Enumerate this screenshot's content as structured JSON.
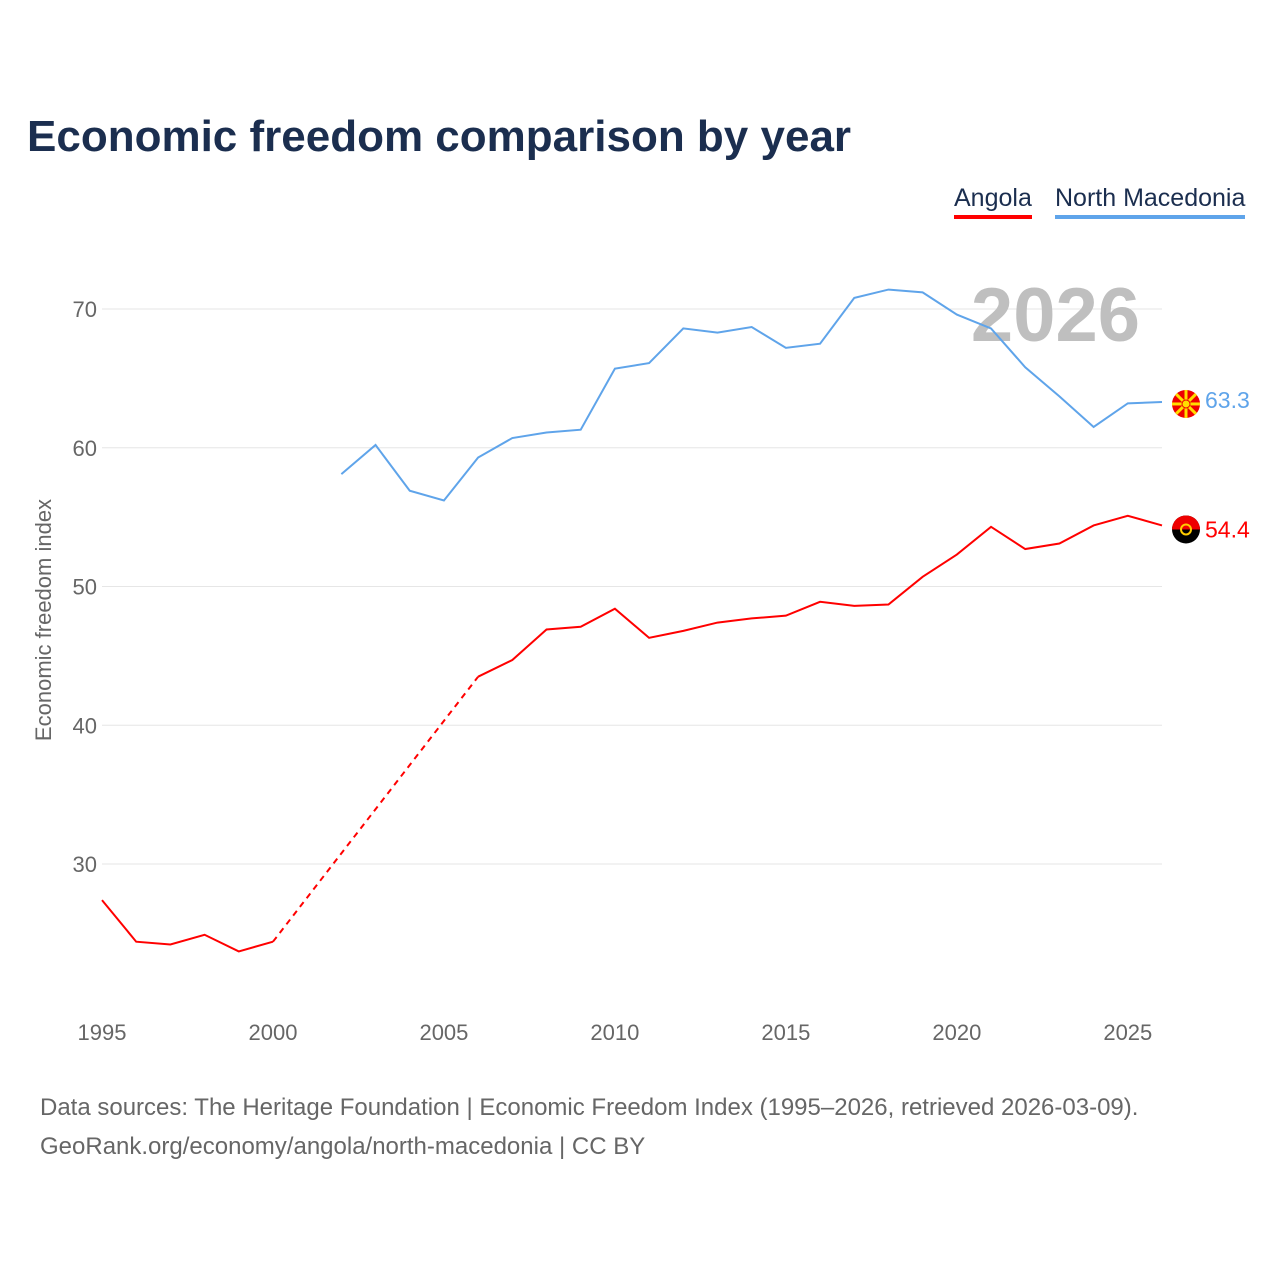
{
  "title": "Economic freedom comparison by year",
  "legend": [
    {
      "label": "Angola",
      "color": "#ff0000"
    },
    {
      "label": "North Macedonia",
      "color": "#5fa4ea"
    }
  ],
  "year_watermark": "2026",
  "footer": {
    "line1": "Data sources: The Heritage Foundation | Economic Freedom Index (1995–2026, retrieved 2026-03-09).",
    "line2": "GeoRank.org/economy/angola/north-macedonia | CC BY"
  },
  "chart_data": {
    "type": "line",
    "title": "Economic freedom comparison by year",
    "xlabel": "",
    "ylabel": "Economic freedom index",
    "xlim": [
      1995,
      2026
    ],
    "ylim": [
      20.2,
      75
    ],
    "xticks": [
      1995,
      2000,
      2005,
      2010,
      2015,
      2020,
      2025
    ],
    "yticks": [
      30,
      40,
      50,
      60,
      70
    ],
    "grid": true,
    "legend_position": "top-right",
    "series": [
      {
        "name": "Angola",
        "color": "#ff0000",
        "end_label": "54.4",
        "gap_dashed": [
          2000,
          2006
        ],
        "x": [
          1995,
          1996,
          1997,
          1998,
          1999,
          2000,
          2006,
          2007,
          2008,
          2009,
          2010,
          2011,
          2012,
          2013,
          2014,
          2015,
          2016,
          2017,
          2018,
          2019,
          2020,
          2021,
          2022,
          2023,
          2024,
          2025,
          2026
        ],
        "y": [
          27.4,
          24.4,
          24.2,
          24.9,
          23.7,
          24.4,
          43.5,
          44.7,
          46.9,
          47.1,
          48.4,
          46.3,
          46.8,
          47.4,
          47.7,
          47.9,
          48.9,
          48.6,
          48.7,
          50.7,
          52.3,
          54.3,
          52.7,
          53.1,
          54.4,
          55.1,
          54.4
        ]
      },
      {
        "name": "North Macedonia",
        "color": "#5fa4ea",
        "end_label": "63.3",
        "x": [
          2002,
          2003,
          2004,
          2005,
          2006,
          2007,
          2008,
          2009,
          2010,
          2011,
          2012,
          2013,
          2014,
          2015,
          2016,
          2017,
          2018,
          2019,
          2020,
          2021,
          2022,
          2023,
          2024,
          2025,
          2026
        ],
        "y": [
          58.1,
          60.2,
          56.9,
          56.2,
          59.3,
          60.7,
          61.1,
          61.3,
          65.7,
          66.1,
          68.6,
          68.3,
          68.7,
          67.2,
          67.5,
          70.8,
          71.4,
          71.2,
          69.6,
          68.6,
          65.8,
          63.7,
          61.5,
          63.2,
          63.3
        ]
      }
    ]
  }
}
